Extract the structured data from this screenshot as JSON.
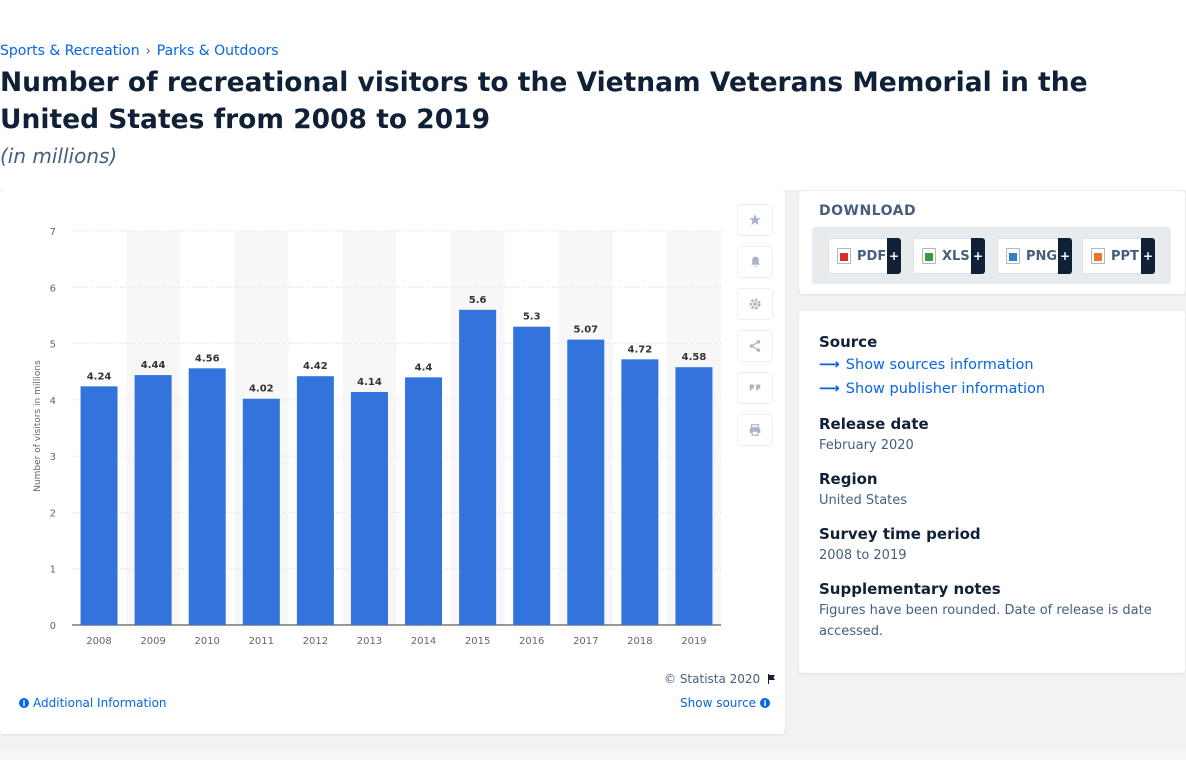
{
  "breadcrumb": {
    "items": [
      "Sports & Recreation",
      "Parks & Outdoors"
    ],
    "separator": "›"
  },
  "page": {
    "title": "Number of recreational visitors to the Vietnam Veterans Memorial in the United States from 2008 to 2019",
    "subtitle": "(in millions)"
  },
  "chart_data": {
    "type": "bar",
    "categories": [
      "2008",
      "2009",
      "2010",
      "2011",
      "2012",
      "2013",
      "2014",
      "2015",
      "2016",
      "2017",
      "2018",
      "2019"
    ],
    "values": [
      4.24,
      4.44,
      4.56,
      4.02,
      4.42,
      4.14,
      4.4,
      5.6,
      5.3,
      5.07,
      4.72,
      4.58
    ],
    "value_labels": [
      "4.24",
      "4.44",
      "4.56",
      "4.02",
      "4.42",
      "4.14",
      "4.4",
      "5.6",
      "5.3",
      "5.07",
      "4.72",
      "4.58"
    ],
    "ylabel": "Number of visitors in millions",
    "xlabel": "",
    "ylim": [
      0,
      7
    ],
    "yticks": [
      "0",
      "1",
      "2",
      "3",
      "4",
      "5",
      "6",
      "7"
    ],
    "grid": true,
    "bar_color": "#3273dc"
  },
  "chart_footer": {
    "copyright": "© Statista 2020",
    "additional_info": "Additional Information",
    "show_source": "Show source"
  },
  "toolbar_icons": [
    "star-icon",
    "bell-icon",
    "gear-icon",
    "share-icon",
    "quote-icon",
    "print-icon"
  ],
  "download": {
    "title": "DOWNLOAD",
    "buttons": [
      {
        "label": "PDF",
        "plus": "+",
        "color": "#d9302d"
      },
      {
        "label": "XLS",
        "plus": "+",
        "color": "#3c9a3c"
      },
      {
        "label": "PNG",
        "plus": "+",
        "color": "#2f7fd1"
      },
      {
        "label": "PPT",
        "plus": "+",
        "color": "#e8772e"
      }
    ]
  },
  "source": {
    "heading": "Source",
    "show_sources": "Show sources information",
    "show_publisher": "Show publisher information",
    "release_heading": "Release date",
    "release_value": "February 2020",
    "region_heading": "Region",
    "region_value": "United States",
    "survey_heading": "Survey time period",
    "survey_value": "2008 to 2019",
    "notes_heading": "Supplementary notes",
    "notes_value": "Figures have been rounded. Date of release is date accessed."
  }
}
